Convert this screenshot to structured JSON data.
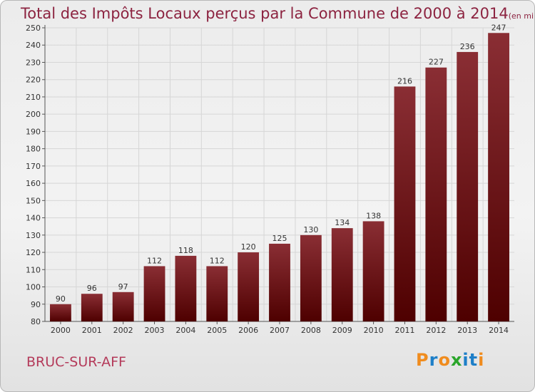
{
  "header": {
    "title": "Total des Impôts Locaux perçus par la Commune de 2000 à 2014",
    "unit": "(en milliers d'€)"
  },
  "footer": {
    "commune": "BRUC-SUR-AFF",
    "logo_letters": [
      "P",
      "r",
      "o",
      "x",
      "i",
      "t",
      "i"
    ]
  },
  "colors": {
    "title": "#8c2340",
    "commune": "#b43a5a",
    "bar_top": "#8a2e34",
    "bar_bottom": "#4e0000",
    "logo": [
      "#f08c1e",
      "#1e7fc8",
      "#f08c1e",
      "#2aa52a",
      "#1e7fc8",
      "#1e7fc8",
      "#f08c1e"
    ]
  },
  "chart_data": {
    "type": "bar",
    "title": "Total des Impôts Locaux perçus par la Commune de 2000 à 2014",
    "xlabel": "",
    "ylabel": "",
    "categories": [
      "2000",
      "2001",
      "2002",
      "2003",
      "2004",
      "2005",
      "2006",
      "2007",
      "2008",
      "2009",
      "2010",
      "2011",
      "2012",
      "2013",
      "2014"
    ],
    "values": [
      90,
      96,
      97,
      112,
      118,
      112,
      120,
      125,
      130,
      134,
      138,
      216,
      227,
      236,
      247
    ],
    "ylim": [
      80,
      250
    ],
    "yticks": [
      80,
      90,
      100,
      110,
      120,
      130,
      140,
      150,
      160,
      170,
      180,
      190,
      200,
      210,
      220,
      230,
      240,
      250
    ],
    "grid": true,
    "legend": "none"
  }
}
